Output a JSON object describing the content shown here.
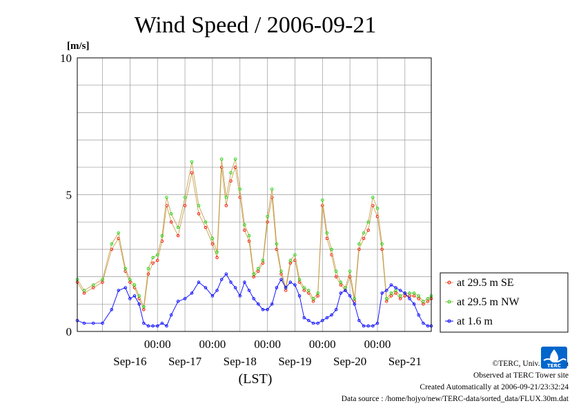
{
  "chart_data": {
    "type": "line",
    "title": "Wind Speed / 2006-09-21",
    "ylabel": "[m/s]",
    "xlabel": "(LST)",
    "ylim": [
      0,
      10
    ],
    "xlim": [
      "2006-09-15 13:00",
      "2006-09-21 23:30"
    ],
    "y_ticks": [
      "0",
      "5",
      "10"
    ],
    "x_time_ticks": [
      "00:00",
      "00:00",
      "00:00",
      "00:00",
      "00:00"
    ],
    "x_date_labels": [
      "Sep-16",
      "Sep-17",
      "Sep-18",
      "Sep-19",
      "Sep-20",
      "Sep-21"
    ],
    "grid": true,
    "legend_position": "right",
    "series": [
      {
        "name": "at 29.5 m SE",
        "color": "#ff0000",
        "line_color": "#c8a050",
        "marker": "open-circle",
        "x": [
          "09-15 13:00",
          "09-15 16:00",
          "09-15 20:00",
          "09-16 00:00",
          "09-16 04:00",
          "09-16 07:00",
          "09-16 10:00",
          "09-16 12:00",
          "09-16 14:00",
          "09-16 16:00",
          "09-16 18:00",
          "09-16 20:00",
          "09-16 22:00",
          "09-17 00:00",
          "09-17 02:00",
          "09-17 04:00",
          "09-17 06:00",
          "09-17 09:00",
          "09-17 12:00",
          "09-17 15:00",
          "09-17 18:00",
          "09-17 21:00",
          "09-18 00:00",
          "09-18 02:00",
          "09-18 04:00",
          "09-18 06:00",
          "09-18 08:00",
          "09-18 10:00",
          "09-18 12:00",
          "09-18 14:00",
          "09-18 16:00",
          "09-18 18:00",
          "09-18 20:00",
          "09-18 22:00",
          "09-19 00:00",
          "09-19 02:00",
          "09-19 04:00",
          "09-19 06:00",
          "09-19 08:00",
          "09-19 10:00",
          "09-19 12:00",
          "09-19 14:00",
          "09-19 16:00",
          "09-19 18:00",
          "09-19 20:00",
          "09-19 22:00",
          "09-20 00:00",
          "09-20 02:00",
          "09-20 04:00",
          "09-20 06:00",
          "09-20 08:00",
          "09-20 10:00",
          "09-20 12:00",
          "09-20 14:00",
          "09-20 16:00",
          "09-20 18:00",
          "09-20 20:00",
          "09-20 22:00",
          "09-21 00:00",
          "09-21 02:00",
          "09-21 04:00",
          "09-21 06:00",
          "09-21 08:00",
          "09-21 10:00",
          "09-21 12:00",
          "09-21 14:00",
          "09-21 16:00",
          "09-21 18:00",
          "09-21 20:00",
          "09-21 22:00",
          "09-21 23:30"
        ],
        "y": [
          1.8,
          1.4,
          1.6,
          1.8,
          3.0,
          3.4,
          2.2,
          1.8,
          1.6,
          1.2,
          0.8,
          2.1,
          2.5,
          2.6,
          3.3,
          4.6,
          4.0,
          3.5,
          4.6,
          5.8,
          4.3,
          3.8,
          3.2,
          2.7,
          6.0,
          4.6,
          5.5,
          6.0,
          4.9,
          3.7,
          3.3,
          2.0,
          2.2,
          2.5,
          4.0,
          4.9,
          3.0,
          2.1,
          1.5,
          2.5,
          2.6,
          1.8,
          1.5,
          1.4,
          1.1,
          1.3,
          4.6,
          3.4,
          2.8,
          2.0,
          1.7,
          1.5,
          2.0,
          1.1,
          3.0,
          3.4,
          3.7,
          4.6,
          4.2,
          3.0,
          1.1,
          1.3,
          1.4,
          1.2,
          1.3,
          1.3,
          1.3,
          1.2,
          1.0,
          1.1,
          1.2
        ]
      },
      {
        "name": "at 29.5 m NW",
        "color": "#00dd00",
        "line_color": "#c8a050",
        "marker": "open-circle",
        "x": [
          "09-15 13:00",
          "09-15 16:00",
          "09-15 20:00",
          "09-16 00:00",
          "09-16 04:00",
          "09-16 07:00",
          "09-16 10:00",
          "09-16 12:00",
          "09-16 14:00",
          "09-16 16:00",
          "09-16 18:00",
          "09-16 20:00",
          "09-16 22:00",
          "09-17 00:00",
          "09-17 02:00",
          "09-17 04:00",
          "09-17 06:00",
          "09-17 09:00",
          "09-17 12:00",
          "09-17 15:00",
          "09-17 18:00",
          "09-17 21:00",
          "09-18 00:00",
          "09-18 02:00",
          "09-18 04:00",
          "09-18 06:00",
          "09-18 08:00",
          "09-18 10:00",
          "09-18 12:00",
          "09-18 14:00",
          "09-18 16:00",
          "09-18 18:00",
          "09-18 20:00",
          "09-18 22:00",
          "09-19 00:00",
          "09-19 02:00",
          "09-19 04:00",
          "09-19 06:00",
          "09-19 08:00",
          "09-19 10:00",
          "09-19 12:00",
          "09-19 14:00",
          "09-19 16:00",
          "09-19 18:00",
          "09-19 20:00",
          "09-19 22:00",
          "09-20 00:00",
          "09-20 02:00",
          "09-20 04:00",
          "09-20 06:00",
          "09-20 08:00",
          "09-20 10:00",
          "09-20 12:00",
          "09-20 14:00",
          "09-20 16:00",
          "09-20 18:00",
          "09-20 20:00",
          "09-20 22:00",
          "09-21 00:00",
          "09-21 02:00",
          "09-21 04:00",
          "09-21 06:00",
          "09-21 08:00",
          "09-21 10:00",
          "09-21 12:00",
          "09-21 14:00",
          "09-21 16:00",
          "09-21 18:00",
          "09-21 20:00",
          "09-21 22:00",
          "09-21 23:30"
        ],
        "y": [
          1.9,
          1.5,
          1.7,
          1.9,
          3.2,
          3.6,
          2.3,
          1.9,
          1.7,
          1.3,
          0.9,
          2.3,
          2.7,
          2.8,
          3.5,
          4.9,
          4.3,
          3.8,
          4.9,
          6.2,
          4.6,
          4.0,
          3.4,
          2.9,
          6.3,
          4.9,
          5.8,
          6.3,
          5.2,
          3.9,
          3.5,
          2.1,
          2.3,
          2.6,
          4.2,
          5.2,
          3.2,
          2.2,
          1.6,
          2.6,
          2.8,
          1.9,
          1.6,
          1.5,
          1.2,
          1.4,
          4.8,
          3.6,
          3.0,
          2.2,
          1.8,
          1.6,
          2.2,
          1.2,
          3.2,
          3.6,
          4.0,
          4.9,
          4.5,
          3.2,
          1.2,
          1.4,
          1.5,
          1.3,
          1.4,
          1.4,
          1.4,
          1.3,
          1.1,
          1.2,
          1.3
        ]
      },
      {
        "name": "at 1.6 m",
        "color": "#0000ff",
        "line_color": "#0000ff",
        "marker": "open-circle",
        "x": [
          "09-15 13:00",
          "09-15 16:00",
          "09-15 20:00",
          "09-16 00:00",
          "09-16 04:00",
          "09-16 07:00",
          "09-16 10:00",
          "09-16 12:00",
          "09-16 14:00",
          "09-16 16:00",
          "09-16 18:00",
          "09-16 20:00",
          "09-16 22:00",
          "09-17 00:00",
          "09-17 02:00",
          "09-17 04:00",
          "09-17 06:00",
          "09-17 09:00",
          "09-17 12:00",
          "09-17 15:00",
          "09-17 18:00",
          "09-17 21:00",
          "09-18 00:00",
          "09-18 02:00",
          "09-18 04:00",
          "09-18 06:00",
          "09-18 08:00",
          "09-18 10:00",
          "09-18 12:00",
          "09-18 14:00",
          "09-18 16:00",
          "09-18 18:00",
          "09-18 20:00",
          "09-18 22:00",
          "09-19 00:00",
          "09-19 02:00",
          "09-19 04:00",
          "09-19 06:00",
          "09-19 08:00",
          "09-19 10:00",
          "09-19 12:00",
          "09-19 14:00",
          "09-19 16:00",
          "09-19 18:00",
          "09-19 20:00",
          "09-19 22:00",
          "09-20 00:00",
          "09-20 02:00",
          "09-20 04:00",
          "09-20 06:00",
          "09-20 08:00",
          "09-20 10:00",
          "09-20 12:00",
          "09-20 14:00",
          "09-20 16:00",
          "09-20 18:00",
          "09-20 20:00",
          "09-20 22:00",
          "09-21 00:00",
          "09-21 02:00",
          "09-21 04:00",
          "09-21 06:00",
          "09-21 08:00",
          "09-21 10:00",
          "09-21 12:00",
          "09-21 14:00",
          "09-21 16:00",
          "09-21 18:00",
          "09-21 20:00",
          "09-21 22:00",
          "09-21 23:30"
        ],
        "y": [
          0.4,
          0.3,
          0.3,
          0.3,
          0.8,
          1.5,
          1.6,
          1.2,
          1.3,
          1.0,
          0.3,
          0.2,
          0.2,
          0.2,
          0.3,
          0.2,
          0.6,
          1.1,
          1.2,
          1.4,
          1.8,
          1.6,
          1.3,
          1.5,
          1.9,
          2.1,
          1.8,
          1.6,
          1.3,
          1.8,
          1.5,
          1.2,
          1.0,
          0.8,
          0.8,
          1.0,
          1.6,
          1.9,
          1.6,
          1.8,
          1.7,
          1.3,
          0.5,
          0.4,
          0.3,
          0.3,
          0.4,
          0.5,
          0.6,
          0.8,
          1.4,
          1.5,
          1.3,
          1.0,
          0.4,
          0.2,
          0.2,
          0.2,
          0.3,
          1.4,
          1.5,
          1.7,
          1.6,
          1.5,
          1.4,
          1.2,
          1.0,
          0.6,
          0.3,
          0.2,
          0.2
        ]
      }
    ]
  },
  "credits": {
    "copyright": "©TERC, Univ. Tsukuba",
    "observed": "Observed at TERC Tower site",
    "created": "Created Automatically at 2006-09-21/23:32:24",
    "source": "Data source : /home/hojyo/new/TERC-data/sorted_data/FLUX.30m.dat"
  },
  "logo": {
    "text": "TERC",
    "color": "#0066cc"
  }
}
